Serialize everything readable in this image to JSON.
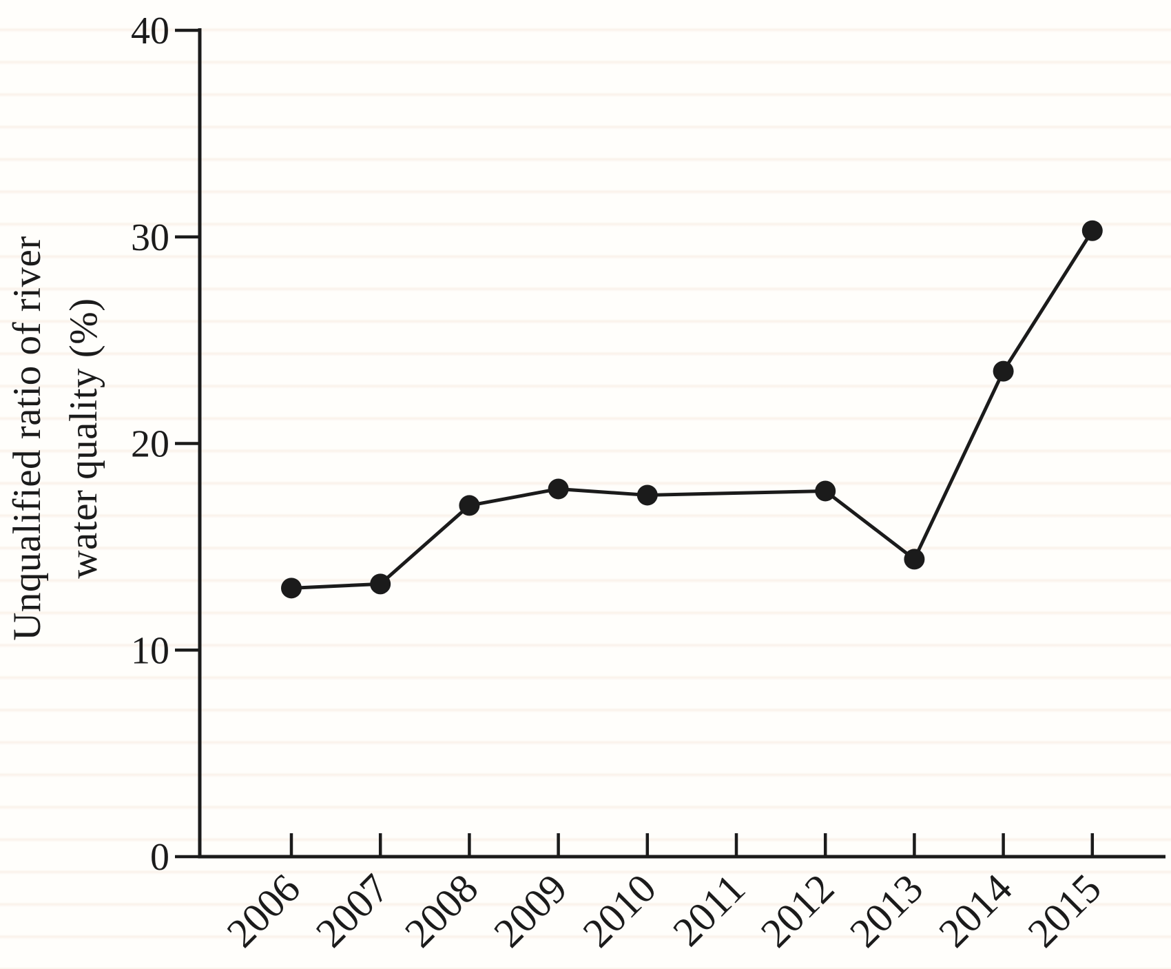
{
  "figure": {
    "kind": "scanned line chart, black on off-white, no title, no legend"
  },
  "chart_data": {
    "type": "line",
    "title": "",
    "xlabel": "",
    "ylabel": "Unqualified ratio of river water quality (%)",
    "ylabel_lines": [
      "Unqualified ratio of river",
      "water quality (%)"
    ],
    "categories": [
      "2006",
      "2007",
      "2008",
      "2009",
      "2010",
      "2011",
      "2012",
      "2013",
      "2014",
      "2015"
    ],
    "series": [
      {
        "name": "unqualified-ratio-of-river-water-quality",
        "points": [
          {
            "year": "2006",
            "value": 13.0
          },
          {
            "year": "2007",
            "value": 13.2
          },
          {
            "year": "2008",
            "value": 17.0
          },
          {
            "year": "2009",
            "value": 17.8
          },
          {
            "year": "2010",
            "value": 17.5
          },
          {
            "year": "2011",
            "value": null
          },
          {
            "year": "2012",
            "value": 17.7
          },
          {
            "year": "2013",
            "value": 14.4
          },
          {
            "year": "2014",
            "value": 23.5
          },
          {
            "year": "2015",
            "value": 30.3
          }
        ]
      }
    ],
    "y_ticks": [
      0,
      10,
      20,
      30,
      40
    ],
    "ylim": [
      0,
      40
    ],
    "grid": false,
    "legend_position": "none",
    "marker": "filled-circle",
    "x_tick_label_rotation_deg": -45,
    "colors": {
      "line": "#1b1b1b",
      "marker": "#1b1b1b",
      "axis": "#1b1b1b",
      "text": "#1b1b1b",
      "background": "#fffefb"
    }
  }
}
